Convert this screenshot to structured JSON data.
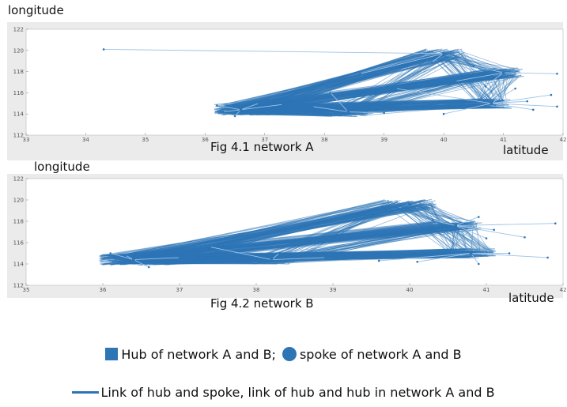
{
  "labels": {
    "top_ylabel": "longitude",
    "top_caption": "Fig 4.1 network A",
    "top_xlabel": "latitude",
    "bottom_ylabel": "longitude",
    "bottom_caption": "Fig 4.2 network B",
    "bottom_xlabel": "latitude"
  },
  "legend": {
    "hub": "Hub of network A and B;",
    "spoke": "spoke of network A and B",
    "link": "Link of hub and spoke, link of hub and hub in network A and B"
  },
  "colors": {
    "line": "#2e75b6",
    "light_line": "#9dc3e6",
    "axes": "#ebebeb",
    "frame": "#c8c8c8"
  },
  "chart_data": [
    {
      "type": "scatter",
      "title": "Fig 4.1 network A",
      "xlabel": "latitude",
      "ylabel": "longitude",
      "xlim": [
        33,
        42
      ],
      "ylim": [
        112,
        122
      ],
      "xticks": [
        33,
        34,
        35,
        36,
        37,
        38,
        39,
        40,
        41,
        42
      ],
      "yticks": [
        112,
        114,
        116,
        118,
        120,
        122
      ],
      "hubs": [
        [
          36.6,
          114.4
        ],
        [
          40.0,
          119.7
        ],
        [
          41.0,
          117.9
        ],
        [
          40.8,
          115.0
        ],
        [
          38.4,
          114.2
        ]
      ],
      "spokes": [
        [
          34.3,
          120.1
        ],
        [
          36.2,
          114.8
        ],
        [
          36.3,
          114.2
        ],
        [
          36.5,
          113.8
        ],
        [
          36.9,
          115.0
        ],
        [
          37.3,
          114.9
        ],
        [
          37.8,
          114.7
        ],
        [
          38.1,
          116.0
        ],
        [
          38.6,
          117.8
        ],
        [
          39.0,
          114.1
        ],
        [
          39.2,
          116.4
        ],
        [
          39.8,
          118.9
        ],
        [
          40.0,
          114.0
        ],
        [
          40.2,
          117.1
        ],
        [
          40.5,
          118.5
        ],
        [
          40.7,
          116.6
        ],
        [
          41.2,
          116.4
        ],
        [
          41.4,
          115.2
        ],
        [
          41.5,
          114.4
        ],
        [
          41.9,
          114.7
        ],
        [
          41.9,
          117.8
        ],
        [
          41.8,
          115.8
        ]
      ]
    },
    {
      "type": "scatter",
      "title": "Fig 4.2 network B",
      "xlabel": "latitude",
      "ylabel": "longitude",
      "xlim": [
        35,
        42
      ],
      "ylim": [
        112,
        122
      ],
      "xticks": [
        35,
        36,
        37,
        38,
        39,
        40,
        41,
        42
      ],
      "yticks": [
        112,
        114,
        116,
        118,
        120,
        122
      ],
      "hubs": [
        [
          36.4,
          114.4
        ],
        [
          40.0,
          119.6
        ],
        [
          40.8,
          115.0
        ],
        [
          40.6,
          117.6
        ],
        [
          38.2,
          114.4
        ]
      ],
      "spokes": [
        [
          36.1,
          115.0
        ],
        [
          36.3,
          114.8
        ],
        [
          36.6,
          113.7
        ],
        [
          37.0,
          114.6
        ],
        [
          37.4,
          115.6
        ],
        [
          38.3,
          115.0
        ],
        [
          38.9,
          114.6
        ],
        [
          39.6,
          114.3
        ],
        [
          40.1,
          114.2
        ],
        [
          40.3,
          118.1
        ],
        [
          40.9,
          118.4
        ],
        [
          41.0,
          116.4
        ],
        [
          41.1,
          117.2
        ],
        [
          41.3,
          115.0
        ],
        [
          41.5,
          116.5
        ],
        [
          41.8,
          114.6
        ],
        [
          41.9,
          117.8
        ],
        [
          40.9,
          114.0
        ]
      ]
    }
  ]
}
